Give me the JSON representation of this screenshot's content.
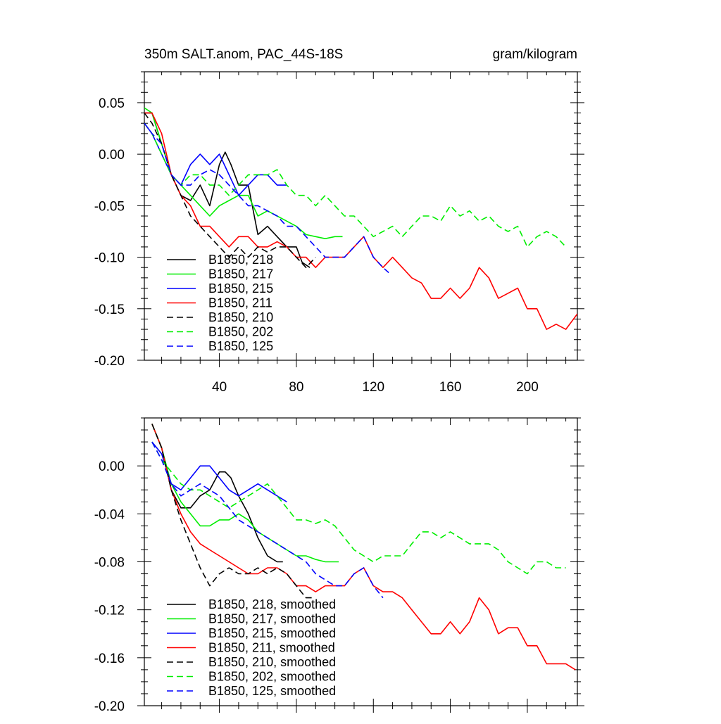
{
  "chart_data": [
    {
      "type": "line",
      "title": "350m SALT.anom, PAC_44S-18S",
      "units": "gram/kilogram",
      "xlabel": "",
      "ylabel": "",
      "xlim": [
        1,
        226
      ],
      "ylim": [
        -0.2,
        0.08
      ],
      "xticks": [
        40,
        80,
        120,
        160,
        200
      ],
      "yticks": [
        0.05,
        0.0,
        -0.05,
        -0.1,
        -0.15,
        -0.2
      ],
      "ytick_labels": [
        "0.05",
        "0.00",
        "-0.05",
        "-0.10",
        "-0.15",
        "-0.20"
      ],
      "grid": false,
      "legend_position": "bottom-left",
      "series": [
        {
          "name": "B1850, 218",
          "color": "#000000",
          "dash": "solid",
          "x": [
            1,
            5,
            10,
            15,
            20,
            25,
            30,
            35,
            40,
            43,
            46,
            50,
            55,
            60,
            65,
            70,
            75,
            80,
            83,
            87
          ],
          "y": [
            0.04,
            0.04,
            0.01,
            -0.02,
            -0.04,
            -0.045,
            -0.03,
            -0.05,
            -0.01,
            0.002,
            -0.01,
            -0.03,
            -0.03,
            -0.078,
            -0.07,
            -0.08,
            -0.09,
            -0.09,
            -0.105,
            -0.11
          ]
        },
        {
          "name": "B1850, 217",
          "color": "#00ee00",
          "dash": "solid",
          "x": [
            1,
            5,
            10,
            15,
            20,
            25,
            30,
            35,
            40,
            45,
            50,
            55,
            60,
            65,
            70,
            75,
            80,
            85,
            90,
            95,
            100,
            104
          ],
          "y": [
            0.045,
            0.04,
            0.01,
            -0.02,
            -0.03,
            -0.04,
            -0.05,
            -0.06,
            -0.05,
            -0.045,
            -0.04,
            -0.04,
            -0.06,
            -0.055,
            -0.06,
            -0.065,
            -0.07,
            -0.078,
            -0.08,
            -0.082,
            -0.08,
            -0.08
          ]
        },
        {
          "name": "B1850, 215",
          "color": "#0000ff",
          "dash": "solid",
          "x": [
            1,
            5,
            10,
            15,
            20,
            25,
            30,
            35,
            40,
            45,
            50,
            55,
            60,
            65,
            70,
            75
          ],
          "y": [
            0.03,
            0.02,
            0.0,
            -0.02,
            -0.03,
            -0.01,
            0.0,
            -0.01,
            0.0,
            -0.02,
            -0.04,
            -0.03,
            -0.02,
            -0.02,
            -0.03,
            -0.03
          ]
        },
        {
          "name": "B1850, 211",
          "color": "#ff0000",
          "dash": "solid",
          "x": [
            1,
            5,
            10,
            15,
            20,
            25,
            30,
            35,
            40,
            45,
            50,
            55,
            60,
            65,
            70,
            75,
            80,
            85,
            90,
            95,
            100,
            105,
            110,
            115,
            120,
            125,
            130,
            135,
            140,
            145,
            150,
            155,
            160,
            165,
            170,
            175,
            180,
            185,
            190,
            195,
            200,
            205,
            210,
            215,
            220,
            226
          ],
          "y": [
            0.04,
            0.04,
            0.02,
            -0.02,
            -0.04,
            -0.05,
            -0.07,
            -0.07,
            -0.08,
            -0.09,
            -0.08,
            -0.08,
            -0.09,
            -0.09,
            -0.085,
            -0.09,
            -0.1,
            -0.1,
            -0.11,
            -0.1,
            -0.1,
            -0.1,
            -0.09,
            -0.08,
            -0.1,
            -0.11,
            -0.1,
            -0.11,
            -0.12,
            -0.125,
            -0.14,
            -0.14,
            -0.13,
            -0.14,
            -0.13,
            -0.11,
            -0.12,
            -0.14,
            -0.135,
            -0.13,
            -0.15,
            -0.15,
            -0.17,
            -0.165,
            -0.17,
            -0.155
          ]
        },
        {
          "name": "B1850, 210",
          "color": "#000000",
          "dash": "dashed",
          "x": [
            1,
            5,
            10,
            15,
            20,
            25,
            30,
            35,
            40,
            45,
            50,
            55,
            60,
            65,
            70,
            75,
            80,
            85,
            90
          ],
          "y": [
            0.04,
            0.03,
            0.01,
            -0.02,
            -0.04,
            -0.06,
            -0.07,
            -0.08,
            -0.09,
            -0.1,
            -0.09,
            -0.1,
            -0.09,
            -0.095,
            -0.09,
            -0.09,
            -0.1,
            -0.11,
            -0.1
          ]
        },
        {
          "name": "B1850, 202",
          "color": "#00ee00",
          "dash": "dashed",
          "x": [
            1,
            5,
            10,
            15,
            20,
            25,
            30,
            35,
            40,
            45,
            50,
            55,
            60,
            65,
            70,
            75,
            80,
            85,
            90,
            95,
            100,
            105,
            110,
            115,
            120,
            125,
            130,
            135,
            140,
            145,
            150,
            155,
            160,
            165,
            170,
            175,
            180,
            185,
            190,
            195,
            200,
            205,
            210,
            215,
            220
          ],
          "y": [
            0.03,
            0.02,
            0.0,
            -0.02,
            -0.03,
            -0.02,
            -0.02,
            -0.03,
            -0.03,
            -0.04,
            -0.03,
            -0.02,
            -0.02,
            -0.02,
            -0.015,
            -0.03,
            -0.04,
            -0.04,
            -0.05,
            -0.04,
            -0.05,
            -0.06,
            -0.06,
            -0.07,
            -0.08,
            -0.075,
            -0.07,
            -0.08,
            -0.07,
            -0.06,
            -0.06,
            -0.065,
            -0.05,
            -0.06,
            -0.055,
            -0.065,
            -0.06,
            -0.07,
            -0.075,
            -0.07,
            -0.09,
            -0.08,
            -0.075,
            -0.08,
            -0.09
          ]
        },
        {
          "name": "B1850, 125",
          "color": "#0000ff",
          "dash": "dashed",
          "x": [
            1,
            5,
            10,
            15,
            20,
            25,
            30,
            35,
            40,
            45,
            50,
            55,
            60,
            65,
            70,
            75,
            80,
            85,
            90,
            95,
            100,
            105,
            110,
            115,
            120,
            125,
            128
          ],
          "y": [
            0.03,
            0.02,
            0.01,
            -0.02,
            -0.03,
            -0.03,
            -0.02,
            -0.015,
            -0.02,
            -0.03,
            -0.04,
            -0.05,
            -0.05,
            -0.055,
            -0.06,
            -0.07,
            -0.07,
            -0.08,
            -0.09,
            -0.1,
            -0.1,
            -0.1,
            -0.09,
            -0.08,
            -0.1,
            -0.11,
            -0.115
          ]
        }
      ]
    },
    {
      "type": "line",
      "title": "",
      "xlabel": "",
      "ylabel": "",
      "xlim": [
        1,
        226
      ],
      "ylim": [
        -0.2,
        0.04
      ],
      "xticks": [
        40,
        80,
        120,
        160,
        200
      ],
      "yticks": [
        0.0,
        -0.04,
        -0.08,
        -0.12,
        -0.16,
        -0.2
      ],
      "ytick_labels": [
        "0.00",
        "-0.04",
        "-0.08",
        "-0.12",
        "-0.16",
        "-0.20"
      ],
      "grid": false,
      "legend_position": "bottom-left",
      "series": [
        {
          "name": "B1850, 218, smoothed",
          "color": "#000000",
          "dash": "solid",
          "x": [
            5,
            10,
            15,
            20,
            25,
            30,
            35,
            40,
            43,
            46,
            50,
            55,
            60,
            65,
            70,
            73
          ],
          "y": [
            0.035,
            0.015,
            -0.02,
            -0.035,
            -0.035,
            -0.025,
            -0.02,
            -0.005,
            -0.005,
            -0.01,
            -0.025,
            -0.04,
            -0.06,
            -0.075,
            -0.08,
            -0.08
          ]
        },
        {
          "name": "B1850, 217, smoothed",
          "color": "#00ee00",
          "dash": "solid",
          "x": [
            5,
            10,
            15,
            20,
            25,
            30,
            35,
            40,
            45,
            50,
            55,
            60,
            65,
            70,
            75,
            80,
            85,
            90,
            95,
            100,
            102
          ],
          "y": [
            0.035,
            0.015,
            -0.015,
            -0.03,
            -0.04,
            -0.05,
            -0.05,
            -0.045,
            -0.045,
            -0.04,
            -0.045,
            -0.055,
            -0.06,
            -0.065,
            -0.07,
            -0.075,
            -0.075,
            -0.078,
            -0.08,
            -0.08,
            -0.08
          ]
        },
        {
          "name": "B1850, 215, smoothed",
          "color": "#0000ff",
          "dash": "solid",
          "x": [
            5,
            10,
            15,
            20,
            25,
            30,
            35,
            40,
            45,
            50,
            55,
            60,
            65,
            70,
            75
          ],
          "y": [
            0.02,
            0.01,
            -0.015,
            -0.02,
            -0.01,
            0.0,
            0.0,
            -0.01,
            -0.02,
            -0.025,
            -0.02,
            -0.015,
            -0.02,
            -0.025,
            -0.03
          ]
        },
        {
          "name": "B1850, 211, smoothed",
          "color": "#ff0000",
          "dash": "solid",
          "x": [
            5,
            10,
            15,
            20,
            25,
            30,
            35,
            40,
            45,
            50,
            55,
            60,
            65,
            70,
            75,
            80,
            85,
            90,
            95,
            100,
            105,
            110,
            115,
            120,
            125,
            130,
            135,
            140,
            145,
            150,
            155,
            160,
            165,
            170,
            175,
            180,
            185,
            190,
            195,
            200,
            205,
            210,
            215,
            220,
            225
          ],
          "y": [
            0.035,
            0.015,
            -0.02,
            -0.04,
            -0.055,
            -0.065,
            -0.07,
            -0.075,
            -0.08,
            -0.085,
            -0.09,
            -0.09,
            -0.085,
            -0.085,
            -0.09,
            -0.1,
            -0.1,
            -0.105,
            -0.1,
            -0.1,
            -0.1,
            -0.09,
            -0.085,
            -0.1,
            -0.105,
            -0.105,
            -0.11,
            -0.12,
            -0.13,
            -0.14,
            -0.14,
            -0.13,
            -0.14,
            -0.13,
            -0.11,
            -0.12,
            -0.14,
            -0.135,
            -0.135,
            -0.15,
            -0.15,
            -0.165,
            -0.165,
            -0.165,
            -0.17
          ]
        },
        {
          "name": "B1850, 210, smoothed",
          "color": "#000000",
          "dash": "dashed",
          "x": [
            5,
            10,
            15,
            20,
            25,
            30,
            35,
            40,
            45,
            50,
            55,
            60,
            65,
            70,
            75,
            80,
            85,
            88
          ],
          "y": [
            0.035,
            0.015,
            -0.02,
            -0.045,
            -0.065,
            -0.085,
            -0.1,
            -0.09,
            -0.085,
            -0.09,
            -0.09,
            -0.085,
            -0.09,
            -0.085,
            -0.09,
            -0.1,
            -0.11,
            -0.11
          ]
        },
        {
          "name": "B1850, 202, smoothed",
          "color": "#00ee00",
          "dash": "dashed",
          "x": [
            5,
            10,
            15,
            20,
            25,
            30,
            35,
            40,
            45,
            50,
            55,
            60,
            65,
            70,
            75,
            80,
            85,
            90,
            95,
            100,
            105,
            110,
            115,
            120,
            125,
            130,
            135,
            140,
            145,
            150,
            155,
            160,
            165,
            170,
            175,
            180,
            185,
            190,
            195,
            200,
            205,
            210,
            215,
            220
          ],
          "y": [
            0.02,
            0.005,
            -0.005,
            -0.015,
            -0.02,
            -0.02,
            -0.025,
            -0.03,
            -0.035,
            -0.03,
            -0.025,
            -0.02,
            -0.015,
            -0.025,
            -0.035,
            -0.045,
            -0.045,
            -0.048,
            -0.045,
            -0.05,
            -0.06,
            -0.07,
            -0.075,
            -0.08,
            -0.075,
            -0.075,
            -0.075,
            -0.065,
            -0.055,
            -0.055,
            -0.06,
            -0.055,
            -0.06,
            -0.065,
            -0.065,
            -0.065,
            -0.07,
            -0.08,
            -0.085,
            -0.09,
            -0.08,
            -0.08,
            -0.085,
            -0.085
          ]
        },
        {
          "name": "B1850, 125, smoothed",
          "color": "#0000ff",
          "dash": "dashed",
          "x": [
            5,
            10,
            15,
            20,
            25,
            30,
            35,
            40,
            45,
            50,
            55,
            60,
            65,
            70,
            75,
            80,
            85,
            90,
            95,
            100,
            105,
            110,
            115,
            120,
            125
          ],
          "y": [
            0.02,
            0.005,
            -0.015,
            -0.025,
            -0.02,
            -0.015,
            -0.02,
            -0.025,
            -0.035,
            -0.045,
            -0.05,
            -0.055,
            -0.06,
            -0.065,
            -0.07,
            -0.075,
            -0.08,
            -0.09,
            -0.095,
            -0.1,
            -0.1,
            -0.09,
            -0.085,
            -0.1,
            -0.11
          ]
        }
      ]
    }
  ]
}
